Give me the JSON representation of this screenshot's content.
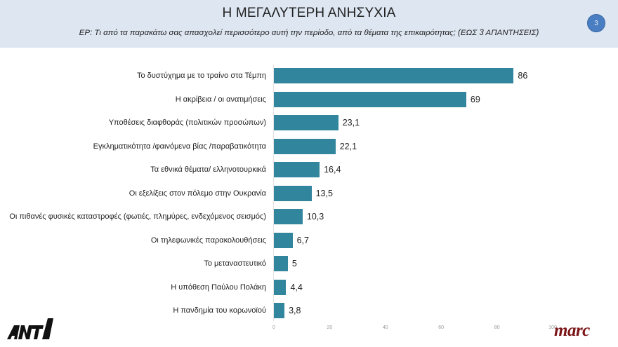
{
  "header": {
    "title": "Η ΜΕΓΑΛΥΤΕΡΗ ΑΝΗΣΥΧΙΑ",
    "subtitle": "ΕΡ:  Τι από τα παρακάτω σας απασχολεί περισσότερο αυτή την περίοδο, από τα θέματα της επικαιρότητας; (ΕΩΣ 3 ΑΠΑΝΤΗΣΕΙΣ)",
    "page_number": "3"
  },
  "logos": {
    "left": "ANT1",
    "right": "marc"
  },
  "colors": {
    "bar": "#31859c",
    "header_bg": "#dde6f1",
    "badge": "#4a7ec2",
    "marc": "#7a1417"
  },
  "chart_data": {
    "type": "bar",
    "orientation": "horizontal",
    "title": "Η ΜΕΓΑΛΥΤΕΡΗ ΑΝΗΣΥΧΙΑ",
    "subtitle": "ΕΡ:  Τι από τα παρακάτω σας απασχολεί περισσότερο αυτή την περίοδο, από τα θέματα της επικαιρότητας; (ΕΩΣ 3 ΑΠΑΝΤΗΣΕΙΣ)",
    "xlabel": "",
    "ylabel": "",
    "xlim": [
      0,
      100
    ],
    "xticks": [
      "0",
      "20",
      "40",
      "60",
      "80",
      "100"
    ],
    "grid": false,
    "legend": null,
    "categories": [
      "Το δυστύχημα με το τραίνο στα Τέμπη",
      "Η ακρίβεια / οι ανατιμήσεις",
      "Υποθέσεις διαφθοράς (πολιτικών προσώπων)",
      "Εγκληματικότητα /φαινόμενα βίας /παραβατικότητα",
      "Τα εθνικά θέματα/ ελληνοτουρκικά",
      "Οι εξελίξεις στον  πόλεμο στην Ουκρανία",
      "Οι πιθανές φυσικές καταστροφές (φωτιές, πλημύρες, ενδεχόμενος σεισμός)",
      "Οι τηλεφωνικές παρακολουθήσεις",
      "Το μεταναστευτικό",
      "Η υπόθεση Παύλου Πολάκη",
      "Η πανδημία του κορωνοϊού"
    ],
    "values": [
      86,
      69,
      23.1,
      22.1,
      16.4,
      13.5,
      10.3,
      6.7,
      5,
      4.4,
      3.8
    ],
    "value_labels": [
      "86",
      "69",
      "23,1",
      "22,1",
      "16,4",
      "13,5",
      "10,3",
      "6,7",
      "5",
      "4,4",
      "3,8"
    ]
  }
}
